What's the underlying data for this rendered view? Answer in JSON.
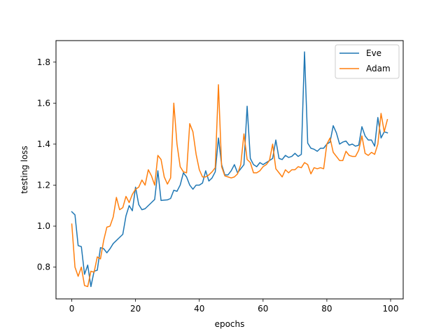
{
  "chart_data": {
    "type": "line",
    "title": "",
    "xlabel": "epochs",
    "ylabel": "testing loss",
    "xlim": [
      -4.95,
      103.95
    ],
    "ylim": [
      0.645,
      1.905
    ],
    "xticks": [
      0,
      20,
      40,
      60,
      80,
      100
    ],
    "yticks": [
      0.8,
      1.0,
      1.2,
      1.4,
      1.6,
      1.8
    ],
    "ytick_labels": [
      "0.8",
      "1.0",
      "1.2",
      "1.4",
      "1.6",
      "1.8"
    ],
    "grid": false,
    "legend_position": "top-right",
    "series": [
      {
        "name": "Eve",
        "color": "#1f77b4",
        "x": [
          0,
          1,
          2,
          3,
          4,
          5,
          6,
          7,
          8,
          9,
          10,
          11,
          12,
          13,
          14,
          15,
          16,
          17,
          18,
          19,
          20,
          21,
          22,
          23,
          24,
          25,
          26,
          27,
          28,
          29,
          30,
          31,
          32,
          33,
          34,
          35,
          36,
          37,
          38,
          39,
          40,
          41,
          42,
          43,
          44,
          45,
          46,
          47,
          48,
          49,
          50,
          51,
          52,
          53,
          54,
          55,
          56,
          57,
          58,
          59,
          60,
          61,
          62,
          63,
          64,
          65,
          66,
          67,
          68,
          69,
          70,
          71,
          72,
          73,
          74,
          75,
          76,
          77,
          78,
          79,
          80,
          81,
          82,
          83,
          84,
          85,
          86,
          87,
          88,
          89,
          90,
          91,
          92,
          93,
          94,
          95,
          96,
          97,
          98,
          99
        ],
        "values": [
          1.07,
          1.055,
          0.905,
          0.9,
          0.765,
          0.81,
          0.705,
          0.78,
          0.785,
          0.895,
          0.89,
          0.87,
          0.89,
          0.915,
          0.93,
          0.945,
          0.96,
          1.05,
          1.1,
          1.075,
          1.19,
          1.105,
          1.08,
          1.085,
          1.1,
          1.115,
          1.13,
          1.27,
          1.125,
          1.127,
          1.128,
          1.135,
          1.175,
          1.17,
          1.2,
          1.26,
          1.24,
          1.2,
          1.18,
          1.2,
          1.2,
          1.21,
          1.27,
          1.22,
          1.235,
          1.265,
          1.43,
          1.3,
          1.25,
          1.25,
          1.27,
          1.3,
          1.26,
          1.28,
          1.3,
          1.585,
          1.33,
          1.3,
          1.29,
          1.31,
          1.3,
          1.31,
          1.32,
          1.33,
          1.42,
          1.33,
          1.325,
          1.345,
          1.335,
          1.34,
          1.355,
          1.34,
          1.35,
          1.85,
          1.405,
          1.38,
          1.375,
          1.365,
          1.38,
          1.38,
          1.4,
          1.41,
          1.49,
          1.455,
          1.4,
          1.41,
          1.415,
          1.395,
          1.4,
          1.39,
          1.395,
          1.485,
          1.44,
          1.42,
          1.42,
          1.39,
          1.53,
          1.43,
          1.46,
          1.455
        ]
      },
      {
        "name": "Adam",
        "color": "#ff7f0e",
        "x": [
          0,
          1,
          2,
          3,
          4,
          5,
          6,
          7,
          8,
          9,
          10,
          11,
          12,
          13,
          14,
          15,
          16,
          17,
          18,
          19,
          20,
          21,
          22,
          23,
          24,
          25,
          26,
          27,
          28,
          29,
          30,
          31,
          32,
          33,
          34,
          35,
          36,
          37,
          38,
          39,
          40,
          41,
          42,
          43,
          44,
          45,
          46,
          47,
          48,
          49,
          50,
          51,
          52,
          53,
          54,
          55,
          56,
          57,
          58,
          59,
          60,
          61,
          62,
          63,
          64,
          65,
          66,
          67,
          68,
          69,
          70,
          71,
          72,
          73,
          74,
          75,
          76,
          77,
          78,
          79,
          80,
          81,
          82,
          83,
          84,
          85,
          86,
          87,
          88,
          89,
          90,
          91,
          92,
          93,
          94,
          95,
          96,
          97,
          98,
          99
        ],
        "values": [
          1.01,
          0.8,
          0.755,
          0.8,
          0.71,
          0.705,
          0.78,
          0.775,
          0.85,
          0.84,
          0.93,
          0.995,
          1.0,
          1.045,
          1.14,
          1.08,
          1.09,
          1.145,
          1.115,
          1.155,
          1.18,
          1.19,
          1.225,
          1.2,
          1.275,
          1.245,
          1.2,
          1.345,
          1.325,
          1.24,
          1.205,
          1.235,
          1.6,
          1.4,
          1.29,
          1.265,
          1.26,
          1.5,
          1.46,
          1.35,
          1.275,
          1.24,
          1.24,
          1.25,
          1.265,
          1.285,
          1.69,
          1.29,
          1.245,
          1.24,
          1.235,
          1.24,
          1.255,
          1.3,
          1.45,
          1.325,
          1.31,
          1.26,
          1.26,
          1.27,
          1.29,
          1.3,
          1.32,
          1.4,
          1.28,
          1.26,
          1.24,
          1.275,
          1.26,
          1.275,
          1.275,
          1.29,
          1.285,
          1.31,
          1.3,
          1.255,
          1.285,
          1.28,
          1.285,
          1.28,
          1.4,
          1.43,
          1.36,
          1.34,
          1.32,
          1.32,
          1.365,
          1.345,
          1.34,
          1.34,
          1.37,
          1.44,
          1.355,
          1.345,
          1.36,
          1.35,
          1.4,
          1.55,
          1.46,
          1.52
        ]
      }
    ]
  }
}
